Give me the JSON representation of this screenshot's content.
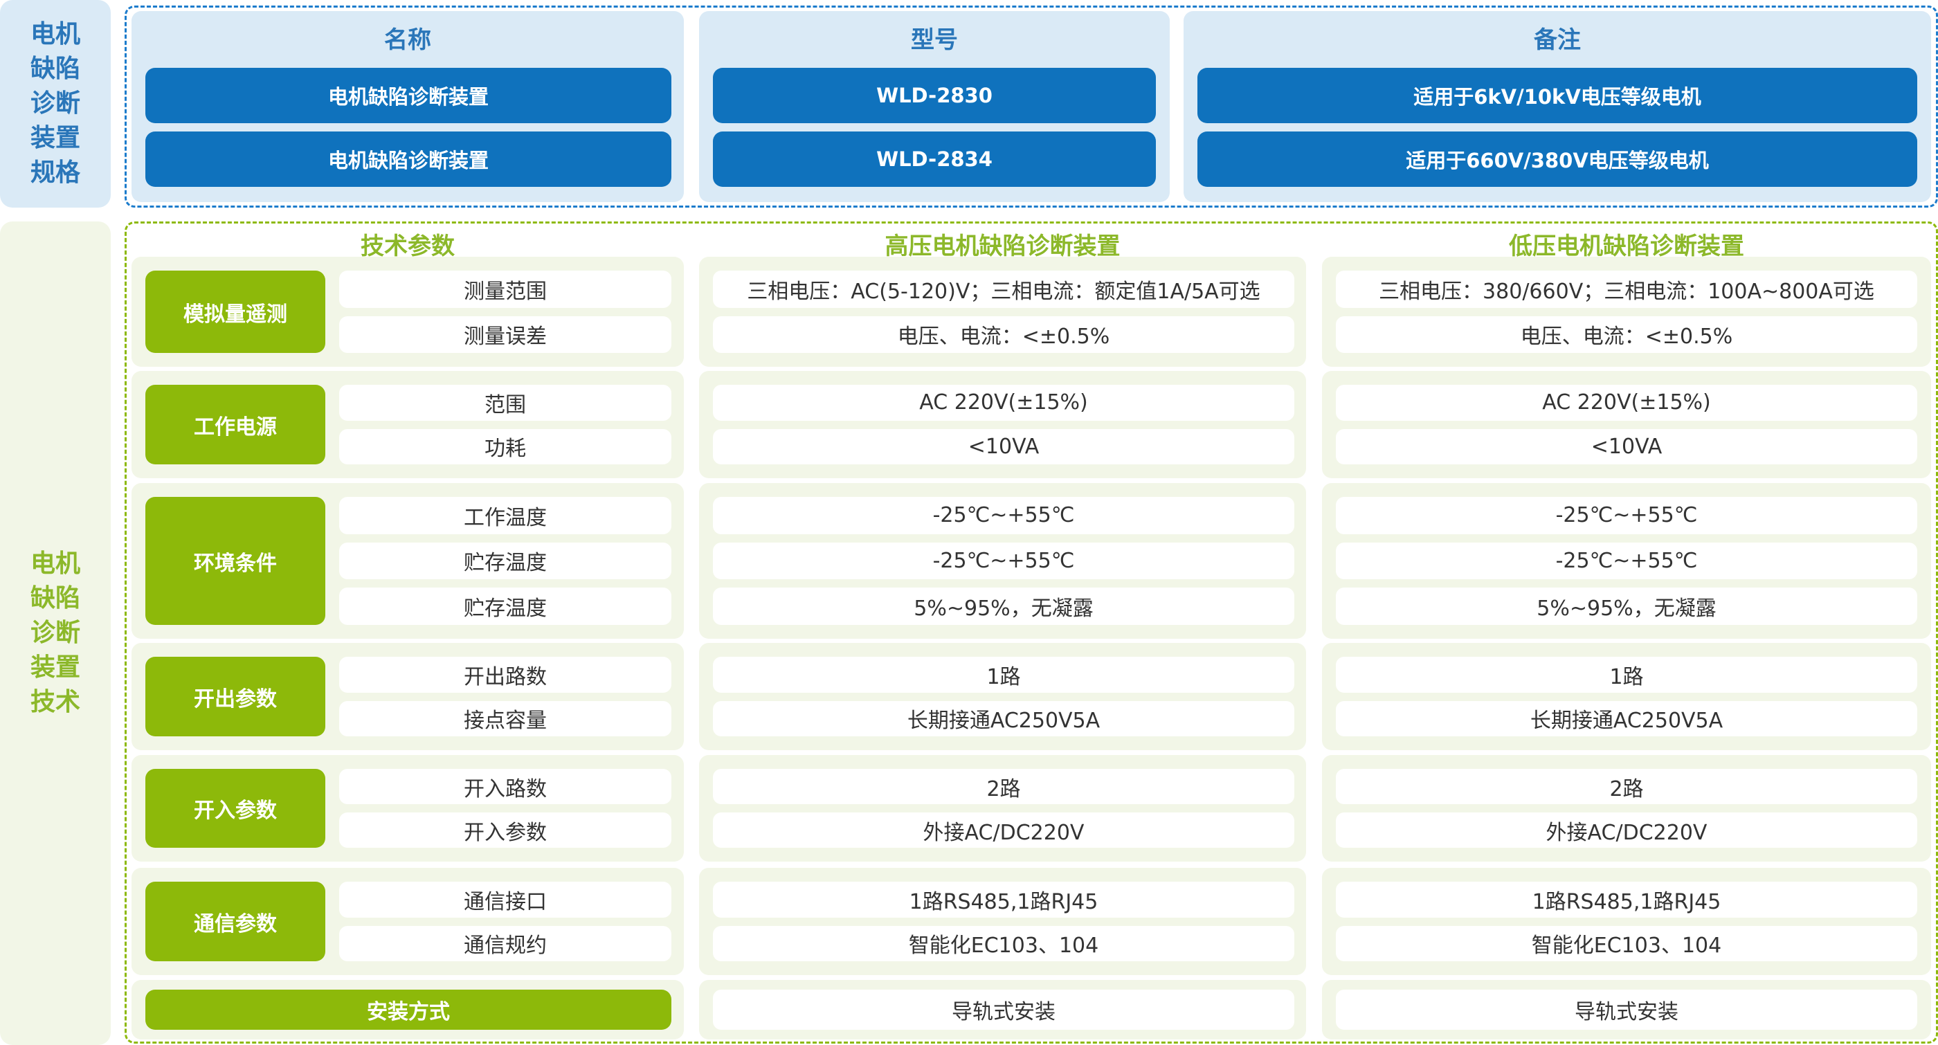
{
  "colors": {
    "blue": "#0f72bd",
    "light_blue": "#daeaf6",
    "green": "#8db90a",
    "light_green": "#f2f6e7"
  },
  "spec": {
    "side_label": [
      "电机",
      "缺陷",
      "诊断",
      "装置",
      "规格"
    ],
    "headers": [
      "名称",
      "型号",
      "备注"
    ],
    "rows": [
      [
        "电机缺陷诊断装置",
        "WLD-2830",
        "适用于6kV/10kV电压等级电机"
      ],
      [
        "电机缺陷诊断装置",
        "WLD-2834",
        "适用于660V/380V电压等级电机"
      ]
    ]
  },
  "tech": {
    "side_label": [
      "电机",
      "缺陷",
      "诊断",
      "装置",
      "技术"
    ],
    "headers": [
      "技术参数",
      "高压电机缺陷诊断装置",
      "低压电机缺陷诊断装置"
    ],
    "groups": [
      {
        "label": "模拟量遥测",
        "items": [
          {
            "name": "测量范围",
            "hv": "三相电压：AC(5-120)V；三相电流：额定值1A/5A可选",
            "lv": "三相电压：380/660V；三相电流：100A~800A可选"
          },
          {
            "name": "测量误差",
            "hv": "电压、电流：<±0.5%",
            "lv": "电压、电流：<±0.5%"
          }
        ]
      },
      {
        "label": "工作电源",
        "items": [
          {
            "name": "范围",
            "hv": "AC 220V(±15%)",
            "lv": "AC 220V(±15%)"
          },
          {
            "name": "功耗",
            "hv": "<10VA",
            "lv": "<10VA"
          }
        ]
      },
      {
        "label": "环境条件",
        "items": [
          {
            "name": "工作温度",
            "hv": "-25℃~+55℃",
            "lv": "-25℃~+55℃"
          },
          {
            "name": "贮存温度",
            "hv": "-25℃~+55℃",
            "lv": "-25℃~+55℃"
          },
          {
            "name": "贮存温度",
            "hv": "5%~95%，无凝露",
            "lv": "5%~95%，无凝露"
          }
        ]
      },
      {
        "label": "开出参数",
        "items": [
          {
            "name": "开出路数",
            "hv": "1路",
            "lv": "1路"
          },
          {
            "name": "接点容量",
            "hv": "长期接通AC250V5A",
            "lv": "长期接通AC250V5A"
          }
        ]
      },
      {
        "label": "开入参数",
        "items": [
          {
            "name": "开入路数",
            "hv": "2路",
            "lv": "2路"
          },
          {
            "name": "开入参数",
            "hv": "外接AC/DC220V",
            "lv": "外接AC/DC220V"
          }
        ]
      },
      {
        "label": "通信参数",
        "items": [
          {
            "name": "通信接口",
            "hv": "1路RS485,1路RJ45",
            "lv": "1路RS485,1路RJ45"
          },
          {
            "name": "通信规约",
            "hv": "智能化EC103、104",
            "lv": "智能化EC103、104"
          }
        ]
      }
    ],
    "install": {
      "label": "安装方式",
      "hv": "导轨式安装",
      "lv": "导轨式安装"
    }
  }
}
